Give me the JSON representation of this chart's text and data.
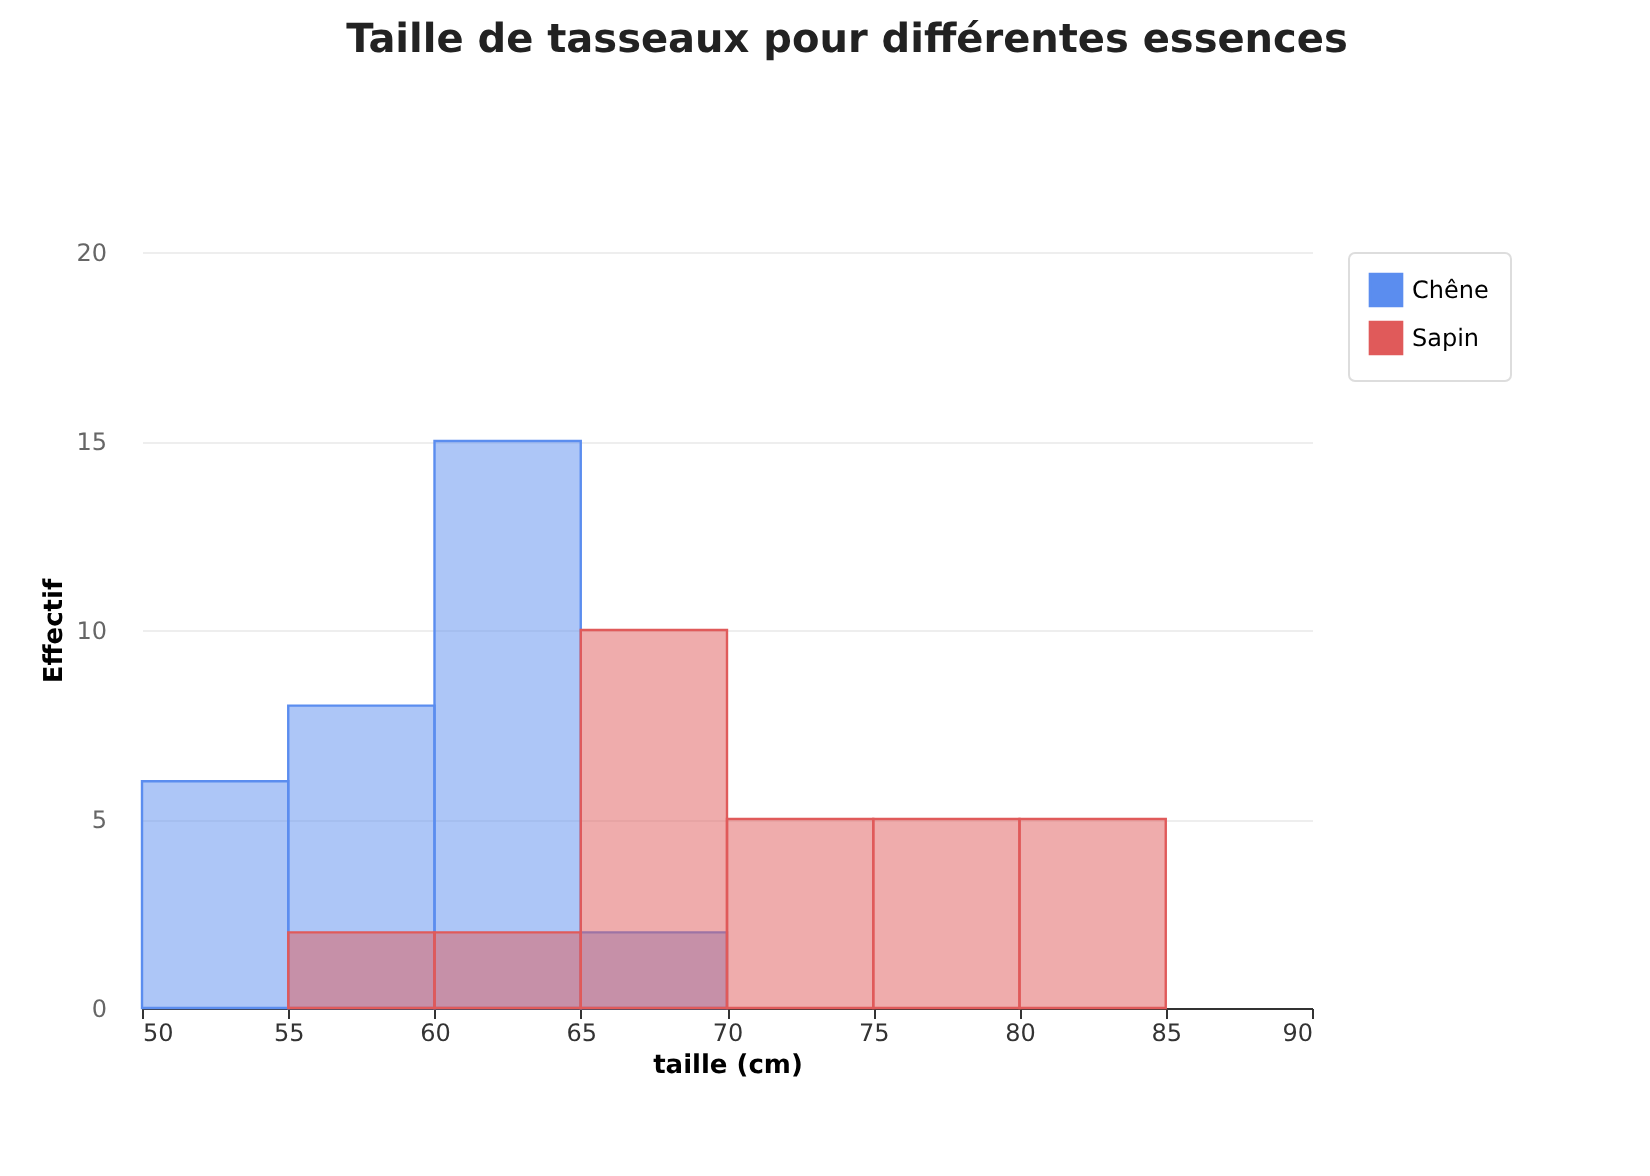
{
  "chart_data": {
    "type": "histogram",
    "title": "Taille de tasseaux pour différentes essences",
    "xlabel": "taille (cm)",
    "ylabel": "Effectif",
    "bins": [
      50,
      55,
      60,
      65,
      70,
      75,
      80,
      85
    ],
    "series": [
      {
        "name": "Chêne",
        "color": "#5b8def",
        "values": [
          6,
          8,
          15,
          2,
          null,
          null,
          null
        ]
      },
      {
        "name": "Sapin",
        "color": "#e05a5a",
        "values": [
          null,
          2,
          2,
          10,
          5,
          5,
          5
        ]
      }
    ],
    "xlim": [
      50,
      90
    ],
    "xticks": [
      50,
      55,
      60,
      65,
      70,
      75,
      80,
      85,
      90
    ],
    "ylim": [
      0,
      20
    ],
    "yticks": [
      0,
      5,
      10,
      15,
      20
    ],
    "grid": "y",
    "legend": "top right"
  }
}
